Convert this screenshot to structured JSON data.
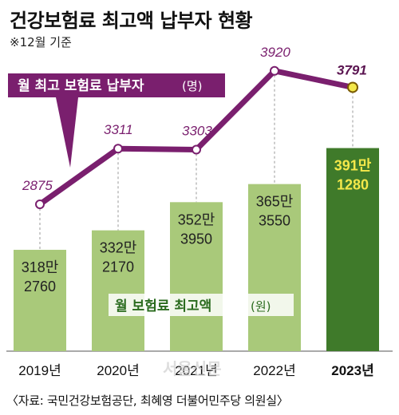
{
  "title": "건강보험료 최고액 납부자 현황",
  "note": "※12월 기준",
  "source": "〈자료: 국민건강보험공단, 최혜영 더불어민주당 의원실〉",
  "watermark": "서울신문",
  "colors": {
    "line": "#7a1f6e",
    "bar_light": "#a9c97a",
    "bar_highlight": "#3f7a2a",
    "highlight_point": "#f4e84a"
  },
  "chart_data": {
    "type": "bar+line",
    "categories": [
      "2019년",
      "2020년",
      "2021년",
      "2022년",
      "2023년"
    ],
    "highlight_index": 4,
    "line_series": {
      "name": "월 최고 보험료 납부자",
      "unit": "(명)",
      "values": [
        2875,
        3311,
        3303,
        3920,
        3791
      ],
      "labels": [
        "2875",
        "3311",
        "3303",
        "3920",
        "3791"
      ]
    },
    "bar_series": {
      "name": "월 보험료 최고액",
      "unit": "(원)",
      "values": [
        3182760,
        3322170,
        3523950,
        3653550,
        3911280
      ],
      "labels_top": [
        "318만",
        "332만",
        "352만",
        "365만",
        "391만"
      ],
      "labels_bottom": [
        "2760",
        "2170",
        "3950",
        "3550",
        "1280"
      ]
    }
  }
}
